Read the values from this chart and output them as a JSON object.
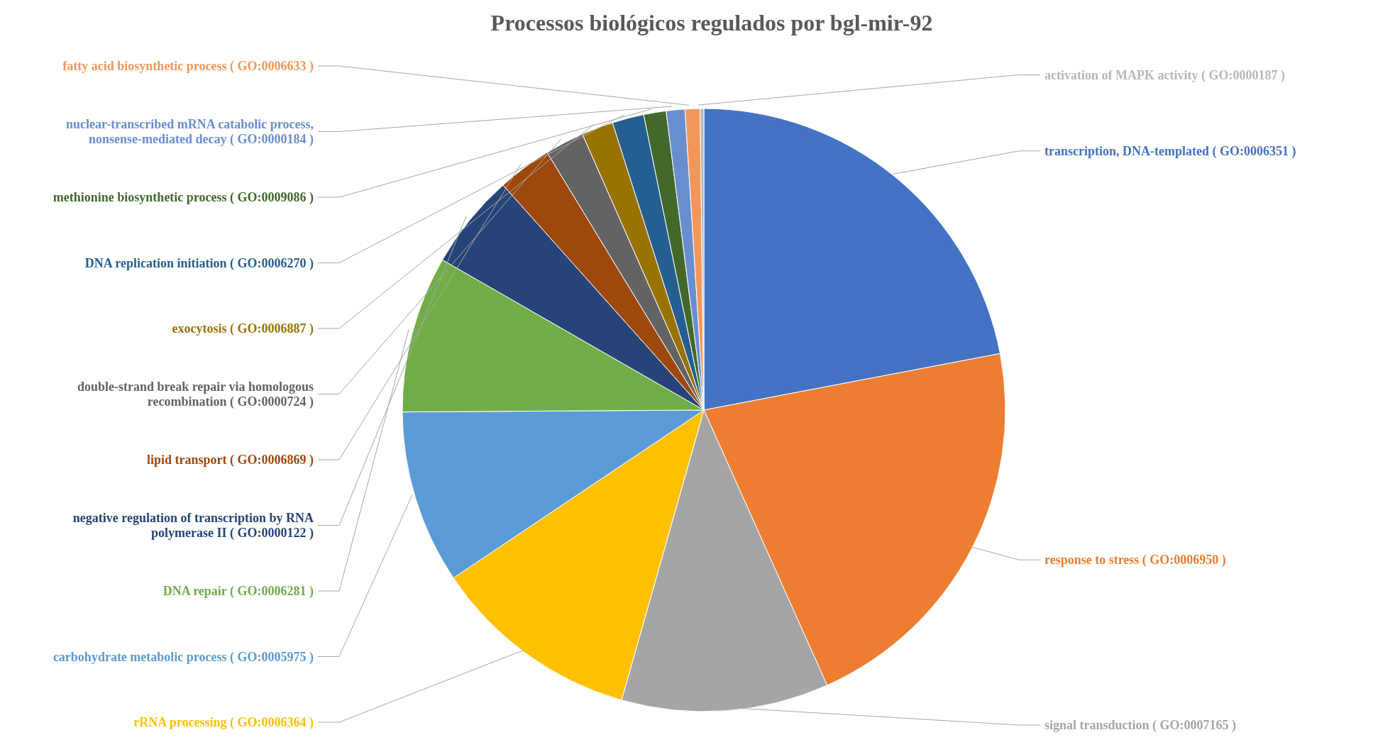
{
  "chart_data": {
    "type": "pie",
    "title": "Processos biológicos regulados por bgl-mir-92",
    "categories": [
      "transcription, DNA-templated ( GO:0006351 )",
      "response to stress ( GO:0006950 )",
      "signal transduction ( GO:0007165 )",
      "rRNA processing ( GO:0006364 )",
      "carbohydrate metabolic process ( GO:0005975 )",
      "DNA repair ( GO:0006281 )",
      "negative regulation of transcription by RNA polymerase II ( GO:0000122 )",
      "lipid transport ( GO:0006869 )",
      "double-strand break repair via homologous recombination ( GO:0000724 )",
      "exocytosis ( GO:0006887 )",
      "DNA replication initiation ( GO:0006270 )",
      "methionine biosynthetic process ( GO:0009086 )",
      "nuclear-transcribed mRNA catabolic process, nonsense-mediated decay ( GO:0000184 )",
      "fatty acid biosynthetic process ( GO:0006633 )",
      "activation of MAPK activity ( GO:0000187 )"
    ],
    "values": [
      22.0,
      21.3,
      11.1,
      11.2,
      9.3,
      8.4,
      5.1,
      2.9,
      2.1,
      1.7,
      1.7,
      1.2,
      1.0,
      0.8,
      0.2
    ],
    "colors": [
      "#4472c4",
      "#ed7d31",
      "#a5a5a5",
      "#ffc000",
      "#5b9bd5",
      "#70ad47",
      "#264478",
      "#9e480e",
      "#636363",
      "#997300",
      "#255e91",
      "#43682b",
      "#698ed0",
      "#f1975a",
      "#b7b7b7"
    ]
  }
}
